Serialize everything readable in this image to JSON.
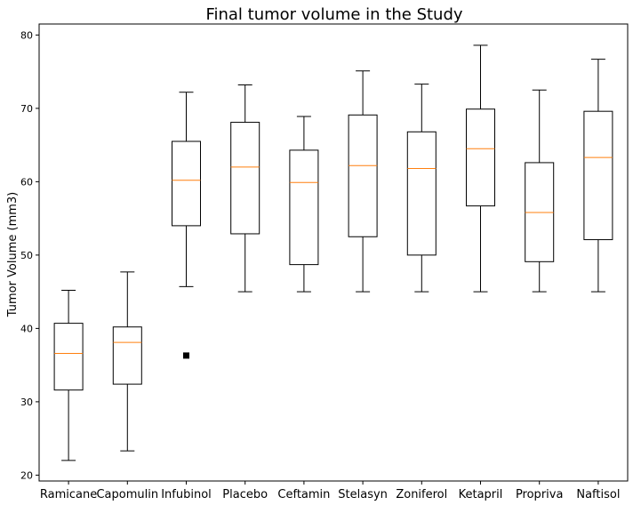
{
  "chart_data": {
    "type": "box",
    "title": "Final tumor volume in the Study",
    "xlabel": "",
    "ylabel": "Tumor Volume (mm3)",
    "ylim": [
      19.2,
      81.5
    ],
    "yticks": [
      20,
      30,
      40,
      50,
      60,
      70,
      80
    ],
    "grid": false,
    "colors": {
      "box": "#000000",
      "median": "#ff7f0e",
      "outlier": "#000000"
    },
    "categories": [
      "Ramicane",
      "Capomulin",
      "Infubinol",
      "Placebo",
      "Ceftamin",
      "Stelasyn",
      "Zoniferol",
      "Ketapril",
      "Propriva",
      "Naftisol"
    ],
    "boxes": [
      {
        "name": "Ramicane",
        "whisker_low": 22.0,
        "q1": 31.6,
        "median": 36.6,
        "q3": 40.7,
        "whisker_high": 45.2,
        "outliers": []
      },
      {
        "name": "Capomulin",
        "whisker_low": 23.3,
        "q1": 32.4,
        "median": 38.1,
        "q3": 40.2,
        "whisker_high": 47.7,
        "outliers": []
      },
      {
        "name": "Infubinol",
        "whisker_low": 45.7,
        "q1": 54.0,
        "median": 60.2,
        "q3": 65.5,
        "whisker_high": 72.2,
        "outliers": [
          36.3
        ]
      },
      {
        "name": "Placebo",
        "whisker_low": 45.0,
        "q1": 52.9,
        "median": 62.0,
        "q3": 68.1,
        "whisker_high": 73.2,
        "outliers": []
      },
      {
        "name": "Ceftamin",
        "whisker_low": 45.0,
        "q1": 48.7,
        "median": 59.9,
        "q3": 64.3,
        "whisker_high": 68.9,
        "outliers": []
      },
      {
        "name": "Stelasyn",
        "whisker_low": 45.0,
        "q1": 52.5,
        "median": 62.2,
        "q3": 69.1,
        "whisker_high": 75.1,
        "outliers": []
      },
      {
        "name": "Zoniferol",
        "whisker_low": 45.0,
        "q1": 50.0,
        "median": 61.8,
        "q3": 66.8,
        "whisker_high": 73.3,
        "outliers": []
      },
      {
        "name": "Ketapril",
        "whisker_low": 45.0,
        "q1": 56.7,
        "median": 64.5,
        "q3": 69.9,
        "whisker_high": 78.6,
        "outliers": []
      },
      {
        "name": "Propriva",
        "whisker_low": 45.0,
        "q1": 49.1,
        "median": 55.8,
        "q3": 62.6,
        "whisker_high": 72.5,
        "outliers": []
      },
      {
        "name": "Naftisol",
        "whisker_low": 45.0,
        "q1": 52.1,
        "median": 63.3,
        "q3": 69.6,
        "whisker_high": 76.7,
        "outliers": []
      }
    ]
  }
}
